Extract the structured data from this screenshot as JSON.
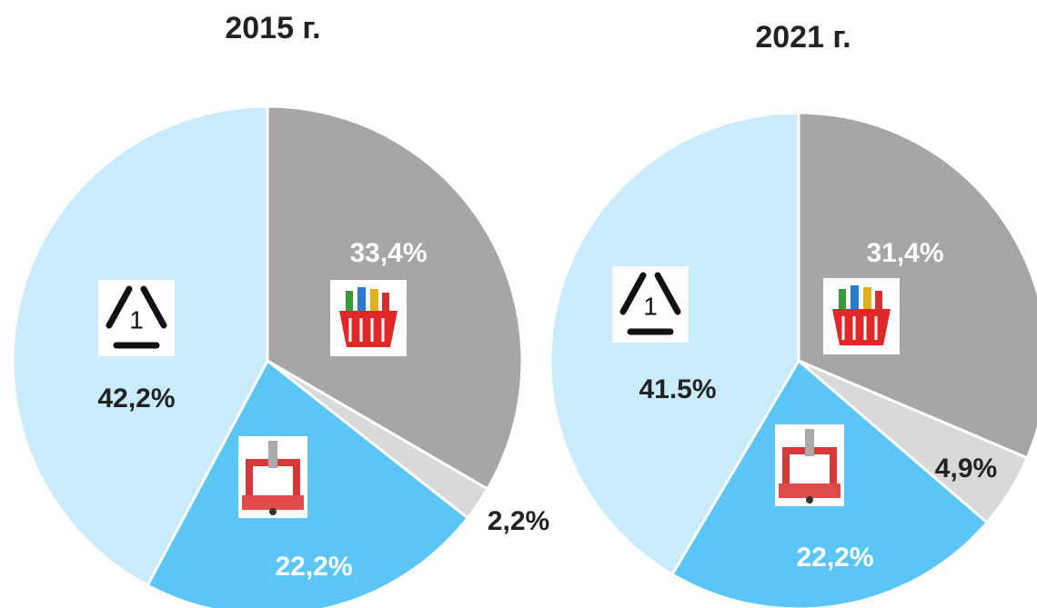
{
  "chart_data": [
    {
      "type": "pie",
      "title": "2015 г.",
      "values": [
        33.4,
        2.2,
        22.2,
        42.2
      ],
      "value_labels": [
        "33,4%",
        "2,2%",
        "22,2%",
        "42,2%"
      ],
      "colors": [
        "#a6a6a6",
        "#d9d9d9",
        "#5bc5f5",
        "#c9ebfb"
      ]
    },
    {
      "type": "pie",
      "title": "2021 г.",
      "values": [
        31.4,
        4.9,
        22.2,
        41.5
      ],
      "value_labels": [
        "31,4%",
        "4,9%",
        "22,2%",
        "41.5%"
      ],
      "colors": [
        "#a6a6a6",
        "#d9d9d9",
        "#5bc5f5",
        "#c9ebfb"
      ]
    }
  ]
}
